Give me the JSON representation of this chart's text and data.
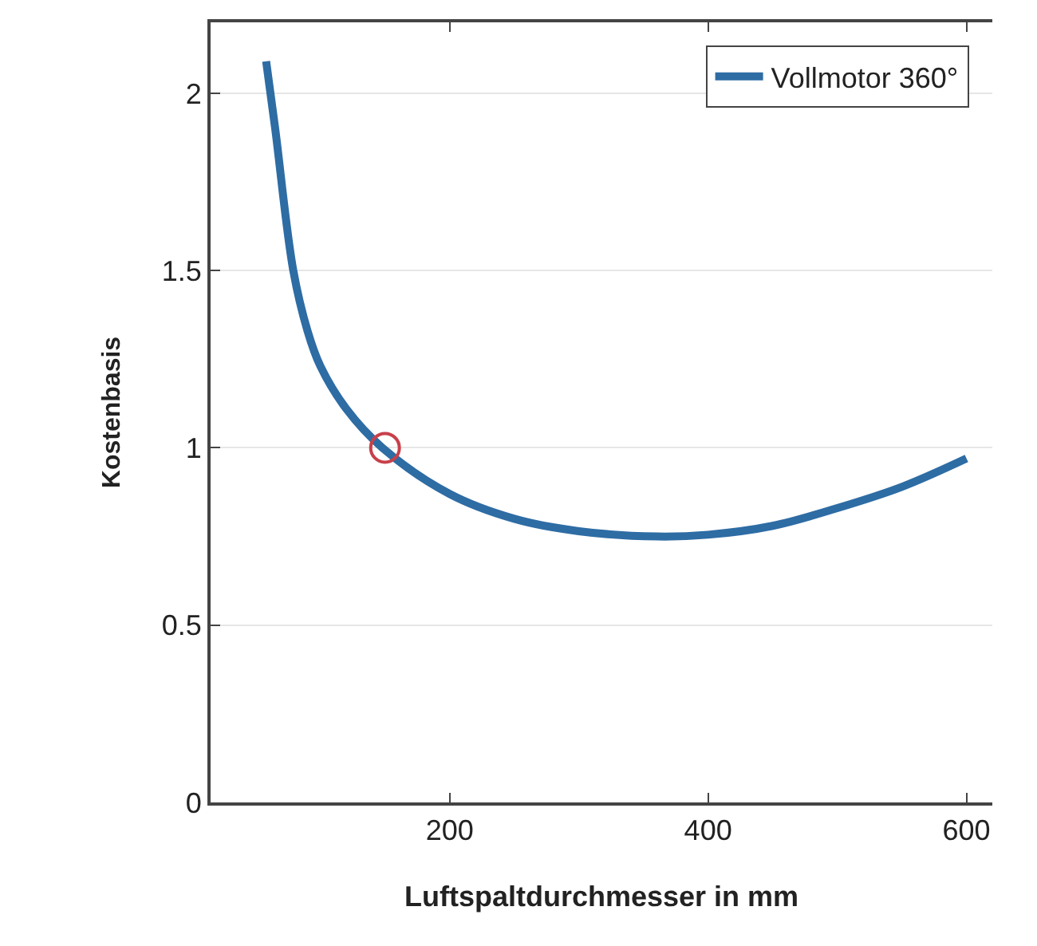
{
  "chart_data": {
    "type": "line",
    "xlabel": "Luftspaltdurchmesser in mm",
    "ylabel": "Kostenbasis",
    "xlim": [
      15,
      620
    ],
    "xticks": [
      200,
      400,
      600
    ],
    "ylim": [
      0,
      2.2
    ],
    "yticks": [
      0,
      0.5,
      1,
      1.5,
      2
    ],
    "grid": "y",
    "legend": "top right",
    "series": [
      {
        "name": "Vollmotor 360°",
        "color": "#2e6ca4",
        "x": [
          58,
          65,
          79,
          90,
          100,
          120,
          148,
          200,
          250,
          300,
          360,
          400,
          450,
          500,
          550,
          600
        ],
        "values": [
          2.09,
          1.9,
          1.5,
          1.33,
          1.23,
          1.11,
          1.0,
          0.87,
          0.8,
          0.765,
          0.75,
          0.755,
          0.78,
          0.83,
          0.89,
          0.97
        ]
      },
      {
        "type": "scatter",
        "color": "#c8404a",
        "marker": "circle",
        "x": [
          150
        ],
        "values": [
          1.0
        ]
      }
    ]
  }
}
